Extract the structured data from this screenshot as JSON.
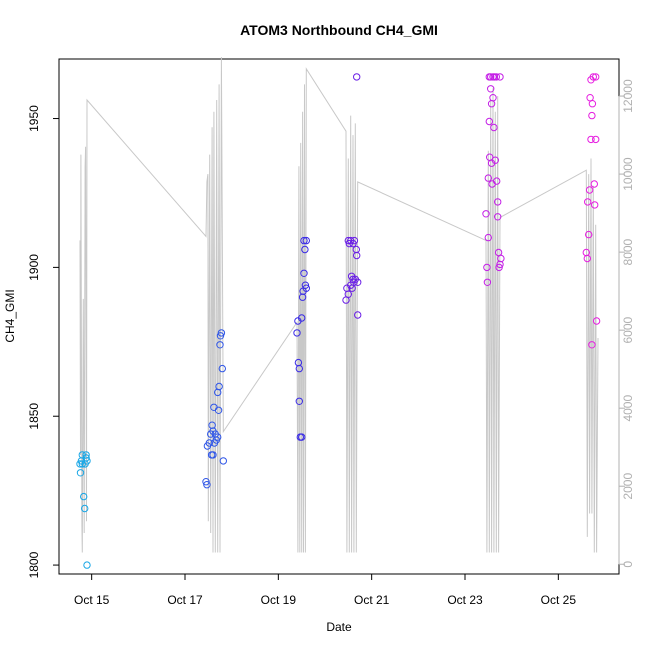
{
  "chart_data": {
    "type": "scatter",
    "title": "ATOM3 Northbound CH4_GMI",
    "xlabel": "Date",
    "ylabel": "CH4_GMI",
    "x_unit": "days (October 2017)",
    "x_ticks": [
      {
        "x": 15,
        "label": "Oct 15"
      },
      {
        "x": 17,
        "label": "Oct 17"
      },
      {
        "x": 19,
        "label": "Oct 19"
      },
      {
        "x": 21,
        "label": "Oct 21"
      },
      {
        "x": 23,
        "label": "Oct 23"
      },
      {
        "x": 25,
        "label": "Oct 25"
      }
    ],
    "xlim": [
      14.3,
      26.3
    ],
    "ylim": [
      1797,
      1970
    ],
    "y_ticks": [
      1800,
      1850,
      1900,
      1950
    ],
    "y2lim": [
      -250,
      12950
    ],
    "y2_ticks": [
      0,
      2000,
      4000,
      6000,
      8000,
      10000,
      12000
    ],
    "grid": false,
    "point_color_note": "points colored by date gradient from light blue to magenta",
    "series": [
      {
        "kind": "points",
        "points": [
          {
            "x": 14.75,
            "y": 1834,
            "c": "#1aa7e6"
          },
          {
            "x": 14.76,
            "y": 1831,
            "c": "#1aa7e6"
          },
          {
            "x": 14.78,
            "y": 1835,
            "c": "#1aa7e6"
          },
          {
            "x": 14.8,
            "y": 1837,
            "c": "#1aa7e6"
          },
          {
            "x": 14.8,
            "y": 1834,
            "c": "#1aa7e6"
          },
          {
            "x": 14.83,
            "y": 1823,
            "c": "#1aa7e6"
          },
          {
            "x": 14.85,
            "y": 1819,
            "c": "#1aa7e6"
          },
          {
            "x": 14.86,
            "y": 1834,
            "c": "#1aa7e6"
          },
          {
            "x": 14.88,
            "y": 1836,
            "c": "#1aa7e6"
          },
          {
            "x": 14.88,
            "y": 1837,
            "c": "#1aa7e6"
          },
          {
            "x": 14.9,
            "y": 1835,
            "c": "#1aa7e6"
          },
          {
            "x": 14.9,
            "y": 1800,
            "c": "#1aa7e6"
          },
          {
            "x": 17.45,
            "y": 1828,
            "c": "#2f56e8"
          },
          {
            "x": 17.47,
            "y": 1827,
            "c": "#2f56e8"
          },
          {
            "x": 17.48,
            "y": 1840,
            "c": "#2f56e8"
          },
          {
            "x": 17.52,
            "y": 1841,
            "c": "#2f56e8"
          },
          {
            "x": 17.55,
            "y": 1844,
            "c": "#2f56e8"
          },
          {
            "x": 17.57,
            "y": 1837,
            "c": "#2f56e8"
          },
          {
            "x": 17.58,
            "y": 1847,
            "c": "#2f56e8"
          },
          {
            "x": 17.6,
            "y": 1845,
            "c": "#2f56e8"
          },
          {
            "x": 17.6,
            "y": 1837,
            "c": "#2f56e8"
          },
          {
            "x": 17.62,
            "y": 1853,
            "c": "#2f56e8"
          },
          {
            "x": 17.63,
            "y": 1841,
            "c": "#2f56e8"
          },
          {
            "x": 17.65,
            "y": 1844,
            "c": "#2f56e8"
          },
          {
            "x": 17.67,
            "y": 1842,
            "c": "#2f56e8"
          },
          {
            "x": 17.7,
            "y": 1843,
            "c": "#2f56e8"
          },
          {
            "x": 17.7,
            "y": 1858,
            "c": "#2f56e8"
          },
          {
            "x": 17.72,
            "y": 1852,
            "c": "#2f56e8"
          },
          {
            "x": 17.73,
            "y": 1860,
            "c": "#2f56e8"
          },
          {
            "x": 17.75,
            "y": 1874,
            "c": "#2f56e8"
          },
          {
            "x": 17.76,
            "y": 1877,
            "c": "#2f56e8"
          },
          {
            "x": 17.78,
            "y": 1878,
            "c": "#2f56e8"
          },
          {
            "x": 17.8,
            "y": 1866,
            "c": "#2f56e8"
          },
          {
            "x": 17.82,
            "y": 1835,
            "c": "#2f56e8"
          },
          {
            "x": 19.4,
            "y": 1878,
            "c": "#3a2be6"
          },
          {
            "x": 19.42,
            "y": 1882,
            "c": "#3a2be6"
          },
          {
            "x": 19.43,
            "y": 1868,
            "c": "#3a2be6"
          },
          {
            "x": 19.45,
            "y": 1866,
            "c": "#3a2be6"
          },
          {
            "x": 19.45,
            "y": 1855,
            "c": "#3a2be6"
          },
          {
            "x": 19.47,
            "y": 1843,
            "c": "#3a2be6"
          },
          {
            "x": 19.5,
            "y": 1843,
            "c": "#3a2be6"
          },
          {
            "x": 19.5,
            "y": 1883,
            "c": "#3a2be6"
          },
          {
            "x": 19.52,
            "y": 1890,
            "c": "#3a2be6"
          },
          {
            "x": 19.53,
            "y": 1892,
            "c": "#3a2be6"
          },
          {
            "x": 19.55,
            "y": 1898,
            "c": "#3a2be6"
          },
          {
            "x": 19.55,
            "y": 1909,
            "c": "#3a2be6"
          },
          {
            "x": 19.57,
            "y": 1906,
            "c": "#3a2be6"
          },
          {
            "x": 19.58,
            "y": 1894,
            "c": "#3a2be6"
          },
          {
            "x": 19.6,
            "y": 1893,
            "c": "#3a2be6"
          },
          {
            "x": 19.6,
            "y": 1909,
            "c": "#3a2be6"
          },
          {
            "x": 20.45,
            "y": 1889,
            "c": "#6a1ee6"
          },
          {
            "x": 20.47,
            "y": 1893,
            "c": "#6a1ee6"
          },
          {
            "x": 20.5,
            "y": 1909,
            "c": "#6a1ee6"
          },
          {
            "x": 20.5,
            "y": 1891,
            "c": "#6a1ee6"
          },
          {
            "x": 20.52,
            "y": 1908,
            "c": "#6a1ee6"
          },
          {
            "x": 20.55,
            "y": 1894,
            "c": "#6a1ee6"
          },
          {
            "x": 20.55,
            "y": 1909,
            "c": "#6a1ee6"
          },
          {
            "x": 20.57,
            "y": 1897,
            "c": "#6a1ee6"
          },
          {
            "x": 20.58,
            "y": 1893,
            "c": "#6a1ee6"
          },
          {
            "x": 20.6,
            "y": 1908,
            "c": "#6a1ee6"
          },
          {
            "x": 20.6,
            "y": 1896,
            "c": "#6a1ee6"
          },
          {
            "x": 20.62,
            "y": 1895,
            "c": "#6a1ee6"
          },
          {
            "x": 20.63,
            "y": 1909,
            "c": "#6a1ee6"
          },
          {
            "x": 20.65,
            "y": 1896,
            "c": "#6a1ee6"
          },
          {
            "x": 20.67,
            "y": 1906,
            "c": "#6a1ee6"
          },
          {
            "x": 20.68,
            "y": 1904,
            "c": "#6a1ee6"
          },
          {
            "x": 20.7,
            "y": 1895,
            "c": "#6a1ee6"
          },
          {
            "x": 20.7,
            "y": 1884,
            "c": "#6a1ee6"
          },
          {
            "x": 20.68,
            "y": 1964,
            "c": "#6a1ee6"
          },
          {
            "x": 23.45,
            "y": 1918,
            "c": "#c41ee6"
          },
          {
            "x": 23.47,
            "y": 1900,
            "c": "#c41ee6"
          },
          {
            "x": 23.48,
            "y": 1895,
            "c": "#c41ee6"
          },
          {
            "x": 23.5,
            "y": 1910,
            "c": "#c41ee6"
          },
          {
            "x": 23.5,
            "y": 1930,
            "c": "#c41ee6"
          },
          {
            "x": 23.52,
            "y": 1949,
            "c": "#c41ee6"
          },
          {
            "x": 23.52,
            "y": 1964,
            "c": "#c41ee6"
          },
          {
            "x": 23.53,
            "y": 1937,
            "c": "#c41ee6"
          },
          {
            "x": 23.55,
            "y": 1964,
            "c": "#c41ee6"
          },
          {
            "x": 23.55,
            "y": 1960,
            "c": "#c41ee6"
          },
          {
            "x": 23.57,
            "y": 1955,
            "c": "#c41ee6"
          },
          {
            "x": 23.57,
            "y": 1935,
            "c": "#c41ee6"
          },
          {
            "x": 23.58,
            "y": 1928,
            "c": "#c41ee6"
          },
          {
            "x": 23.6,
            "y": 1964,
            "c": "#c41ee6"
          },
          {
            "x": 23.6,
            "y": 1957,
            "c": "#c41ee6"
          },
          {
            "x": 23.62,
            "y": 1947,
            "c": "#c41ee6"
          },
          {
            "x": 23.63,
            "y": 1964,
            "c": "#c41ee6"
          },
          {
            "x": 23.65,
            "y": 1936,
            "c": "#c41ee6"
          },
          {
            "x": 23.67,
            "y": 1964,
            "c": "#c41ee6"
          },
          {
            "x": 23.68,
            "y": 1929,
            "c": "#c41ee6"
          },
          {
            "x": 23.7,
            "y": 1922,
            "c": "#c41ee6"
          },
          {
            "x": 23.7,
            "y": 1917,
            "c": "#c41ee6"
          },
          {
            "x": 23.72,
            "y": 1905,
            "c": "#c41ee6"
          },
          {
            "x": 23.73,
            "y": 1900,
            "c": "#c41ee6"
          },
          {
            "x": 23.75,
            "y": 1901,
            "c": "#c41ee6"
          },
          {
            "x": 23.75,
            "y": 1964,
            "c": "#c41ee6"
          },
          {
            "x": 23.77,
            "y": 1903,
            "c": "#c41ee6"
          },
          {
            "x": 25.6,
            "y": 1905,
            "c": "#e61ee0"
          },
          {
            "x": 25.62,
            "y": 1903,
            "c": "#e61ee0"
          },
          {
            "x": 25.63,
            "y": 1922,
            "c": "#e61ee0"
          },
          {
            "x": 25.65,
            "y": 1911,
            "c": "#e61ee0"
          },
          {
            "x": 25.67,
            "y": 1926,
            "c": "#e61ee0"
          },
          {
            "x": 25.68,
            "y": 1957,
            "c": "#e61ee0"
          },
          {
            "x": 25.7,
            "y": 1963,
            "c": "#e61ee0"
          },
          {
            "x": 25.7,
            "y": 1943,
            "c": "#e61ee0"
          },
          {
            "x": 25.72,
            "y": 1951,
            "c": "#e61ee0"
          },
          {
            "x": 25.73,
            "y": 1955,
            "c": "#e61ee0"
          },
          {
            "x": 25.75,
            "y": 1964,
            "c": "#e61ee0"
          },
          {
            "x": 25.77,
            "y": 1928,
            "c": "#e61ee0"
          },
          {
            "x": 25.78,
            "y": 1921,
            "c": "#e61ee0"
          },
          {
            "x": 25.8,
            "y": 1943,
            "c": "#e61ee0"
          },
          {
            "x": 25.8,
            "y": 1964,
            "c": "#e61ee0"
          },
          {
            "x": 25.82,
            "y": 1882,
            "c": "#e61ee0"
          },
          {
            "x": 25.72,
            "y": 1874,
            "c": "#e61ee0"
          }
        ]
      },
      {
        "kind": "line",
        "axis": "right",
        "color": "#c8c8c8",
        "points": [
          [
            14.75,
            8300
          ],
          [
            14.76,
            2800
          ],
          [
            14.77,
            10500
          ],
          [
            14.79,
            1000
          ],
          [
            14.8,
            300
          ],
          [
            14.82,
            6800
          ],
          [
            14.84,
            800
          ],
          [
            14.86,
            10200
          ],
          [
            14.87,
            10700
          ],
          [
            14.89,
            1100
          ],
          [
            14.9,
            11900
          ],
          [
            17.45,
            8400
          ],
          [
            17.47,
            9800
          ],
          [
            17.49,
            10000
          ],
          [
            17.5,
            1100
          ],
          [
            17.53,
            10500
          ],
          [
            17.55,
            800
          ],
          [
            17.58,
            11200
          ],
          [
            17.6,
            300
          ],
          [
            17.62,
            11600
          ],
          [
            17.65,
            300
          ],
          [
            17.68,
            11900
          ],
          [
            17.7,
            300
          ],
          [
            17.73,
            12300
          ],
          [
            17.75,
            300
          ],
          [
            17.78,
            13000
          ],
          [
            17.82,
            3400
          ],
          [
            19.4,
            6200
          ],
          [
            19.42,
            300
          ],
          [
            19.44,
            10200
          ],
          [
            19.46,
            300
          ],
          [
            19.48,
            10800
          ],
          [
            19.5,
            300
          ],
          [
            19.52,
            11600
          ],
          [
            19.54,
            300
          ],
          [
            19.56,
            12300
          ],
          [
            19.58,
            300
          ],
          [
            19.6,
            12700
          ],
          [
            20.45,
            11100
          ],
          [
            20.47,
            300
          ],
          [
            20.5,
            10400
          ],
          [
            20.52,
            300
          ],
          [
            20.55,
            11500
          ],
          [
            20.57,
            300
          ],
          [
            20.6,
            11000
          ],
          [
            20.62,
            300
          ],
          [
            20.65,
            11300
          ],
          [
            20.67,
            300
          ],
          [
            20.7,
            9800
          ],
          [
            23.45,
            8300
          ],
          [
            23.47,
            300
          ],
          [
            23.5,
            10600
          ],
          [
            23.52,
            300
          ],
          [
            23.55,
            11900
          ],
          [
            23.57,
            300
          ],
          [
            23.6,
            12200
          ],
          [
            23.62,
            300
          ],
          [
            23.65,
            11600
          ],
          [
            23.67,
            300
          ],
          [
            23.7,
            12000
          ],
          [
            23.72,
            300
          ],
          [
            23.75,
            8900
          ],
          [
            23.77,
            8900
          ],
          [
            25.6,
            10100
          ],
          [
            25.62,
            700
          ],
          [
            25.65,
            10000
          ],
          [
            25.67,
            1300
          ],
          [
            25.7,
            10400
          ],
          [
            25.72,
            1300
          ],
          [
            25.75,
            9700
          ],
          [
            25.77,
            300
          ],
          [
            25.8,
            8700
          ],
          [
            25.82,
            300
          ],
          [
            25.85,
            5800
          ]
        ]
      }
    ]
  }
}
